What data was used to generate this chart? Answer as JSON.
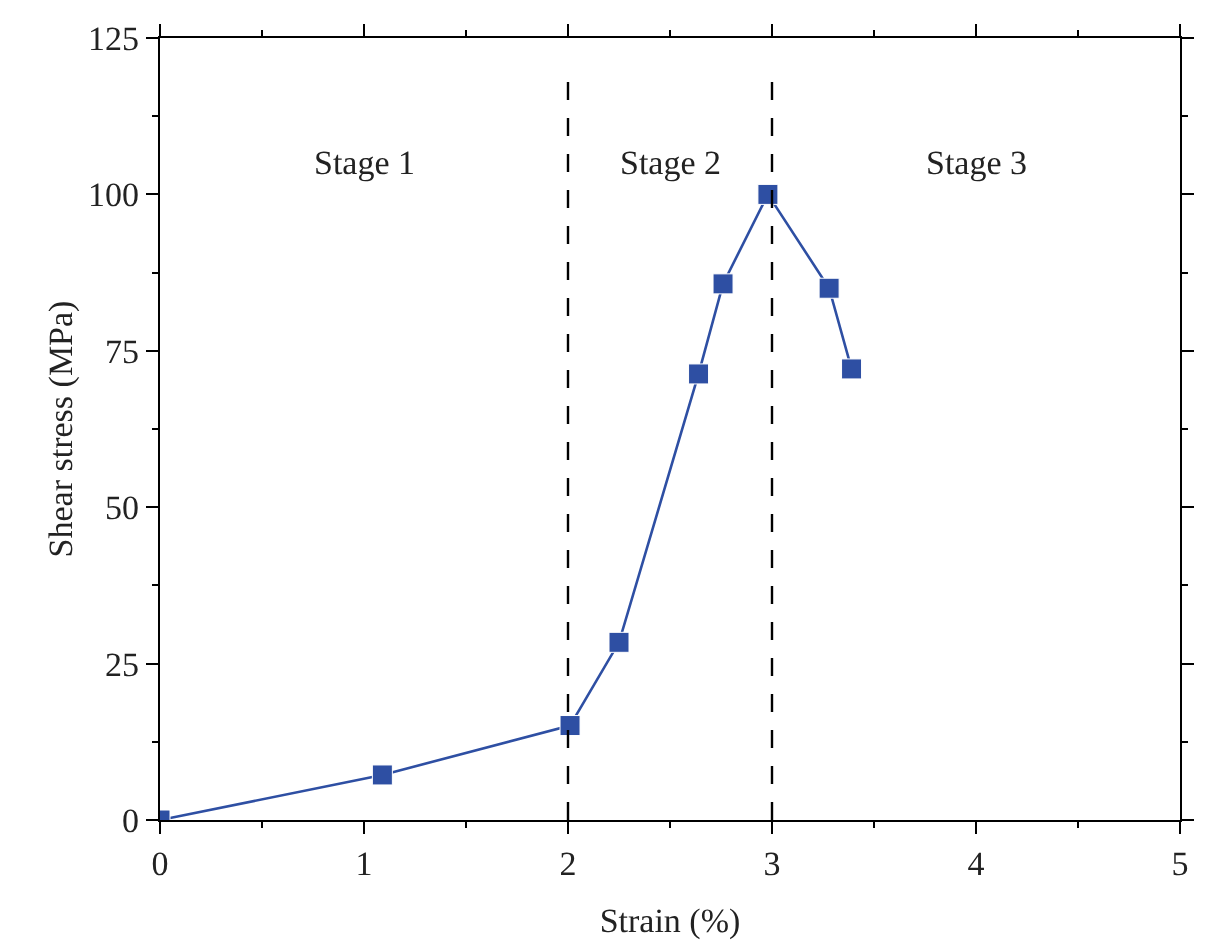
{
  "chart_data": {
    "type": "line",
    "xlabel": "Strain (%)",
    "ylabel": "Shear stress (MPa)",
    "x": [
      0,
      1.09,
      2.01,
      2.25,
      2.64,
      2.76,
      2.98,
      3.28,
      3.39
    ],
    "series": [
      {
        "color": "#2e4fa3",
        "values": [
          0,
          7.2,
          15.1,
          28.4,
          71.3,
          85.7,
          100,
          85.0,
          72.1
        ]
      }
    ],
    "marker": "square",
    "line_style": "solid",
    "grid": false,
    "legend": false,
    "xlim": [
      0,
      5
    ],
    "xticks": [
      0,
      1,
      2,
      3,
      4,
      5
    ],
    "ylim": [
      0,
      125
    ],
    "yticks": [
      0,
      25,
      50,
      75,
      100,
      125
    ],
    "ref_lines": [
      {
        "axis": "x",
        "value": 2,
        "color": "#000000",
        "line_style": "dashed"
      },
      {
        "axis": "x",
        "value": 3,
        "color": "#000000",
        "line_style": "dashed"
      }
    ],
    "annotations": [
      "Stage 1",
      "Stage 2",
      "Stage 3"
    ]
  }
}
